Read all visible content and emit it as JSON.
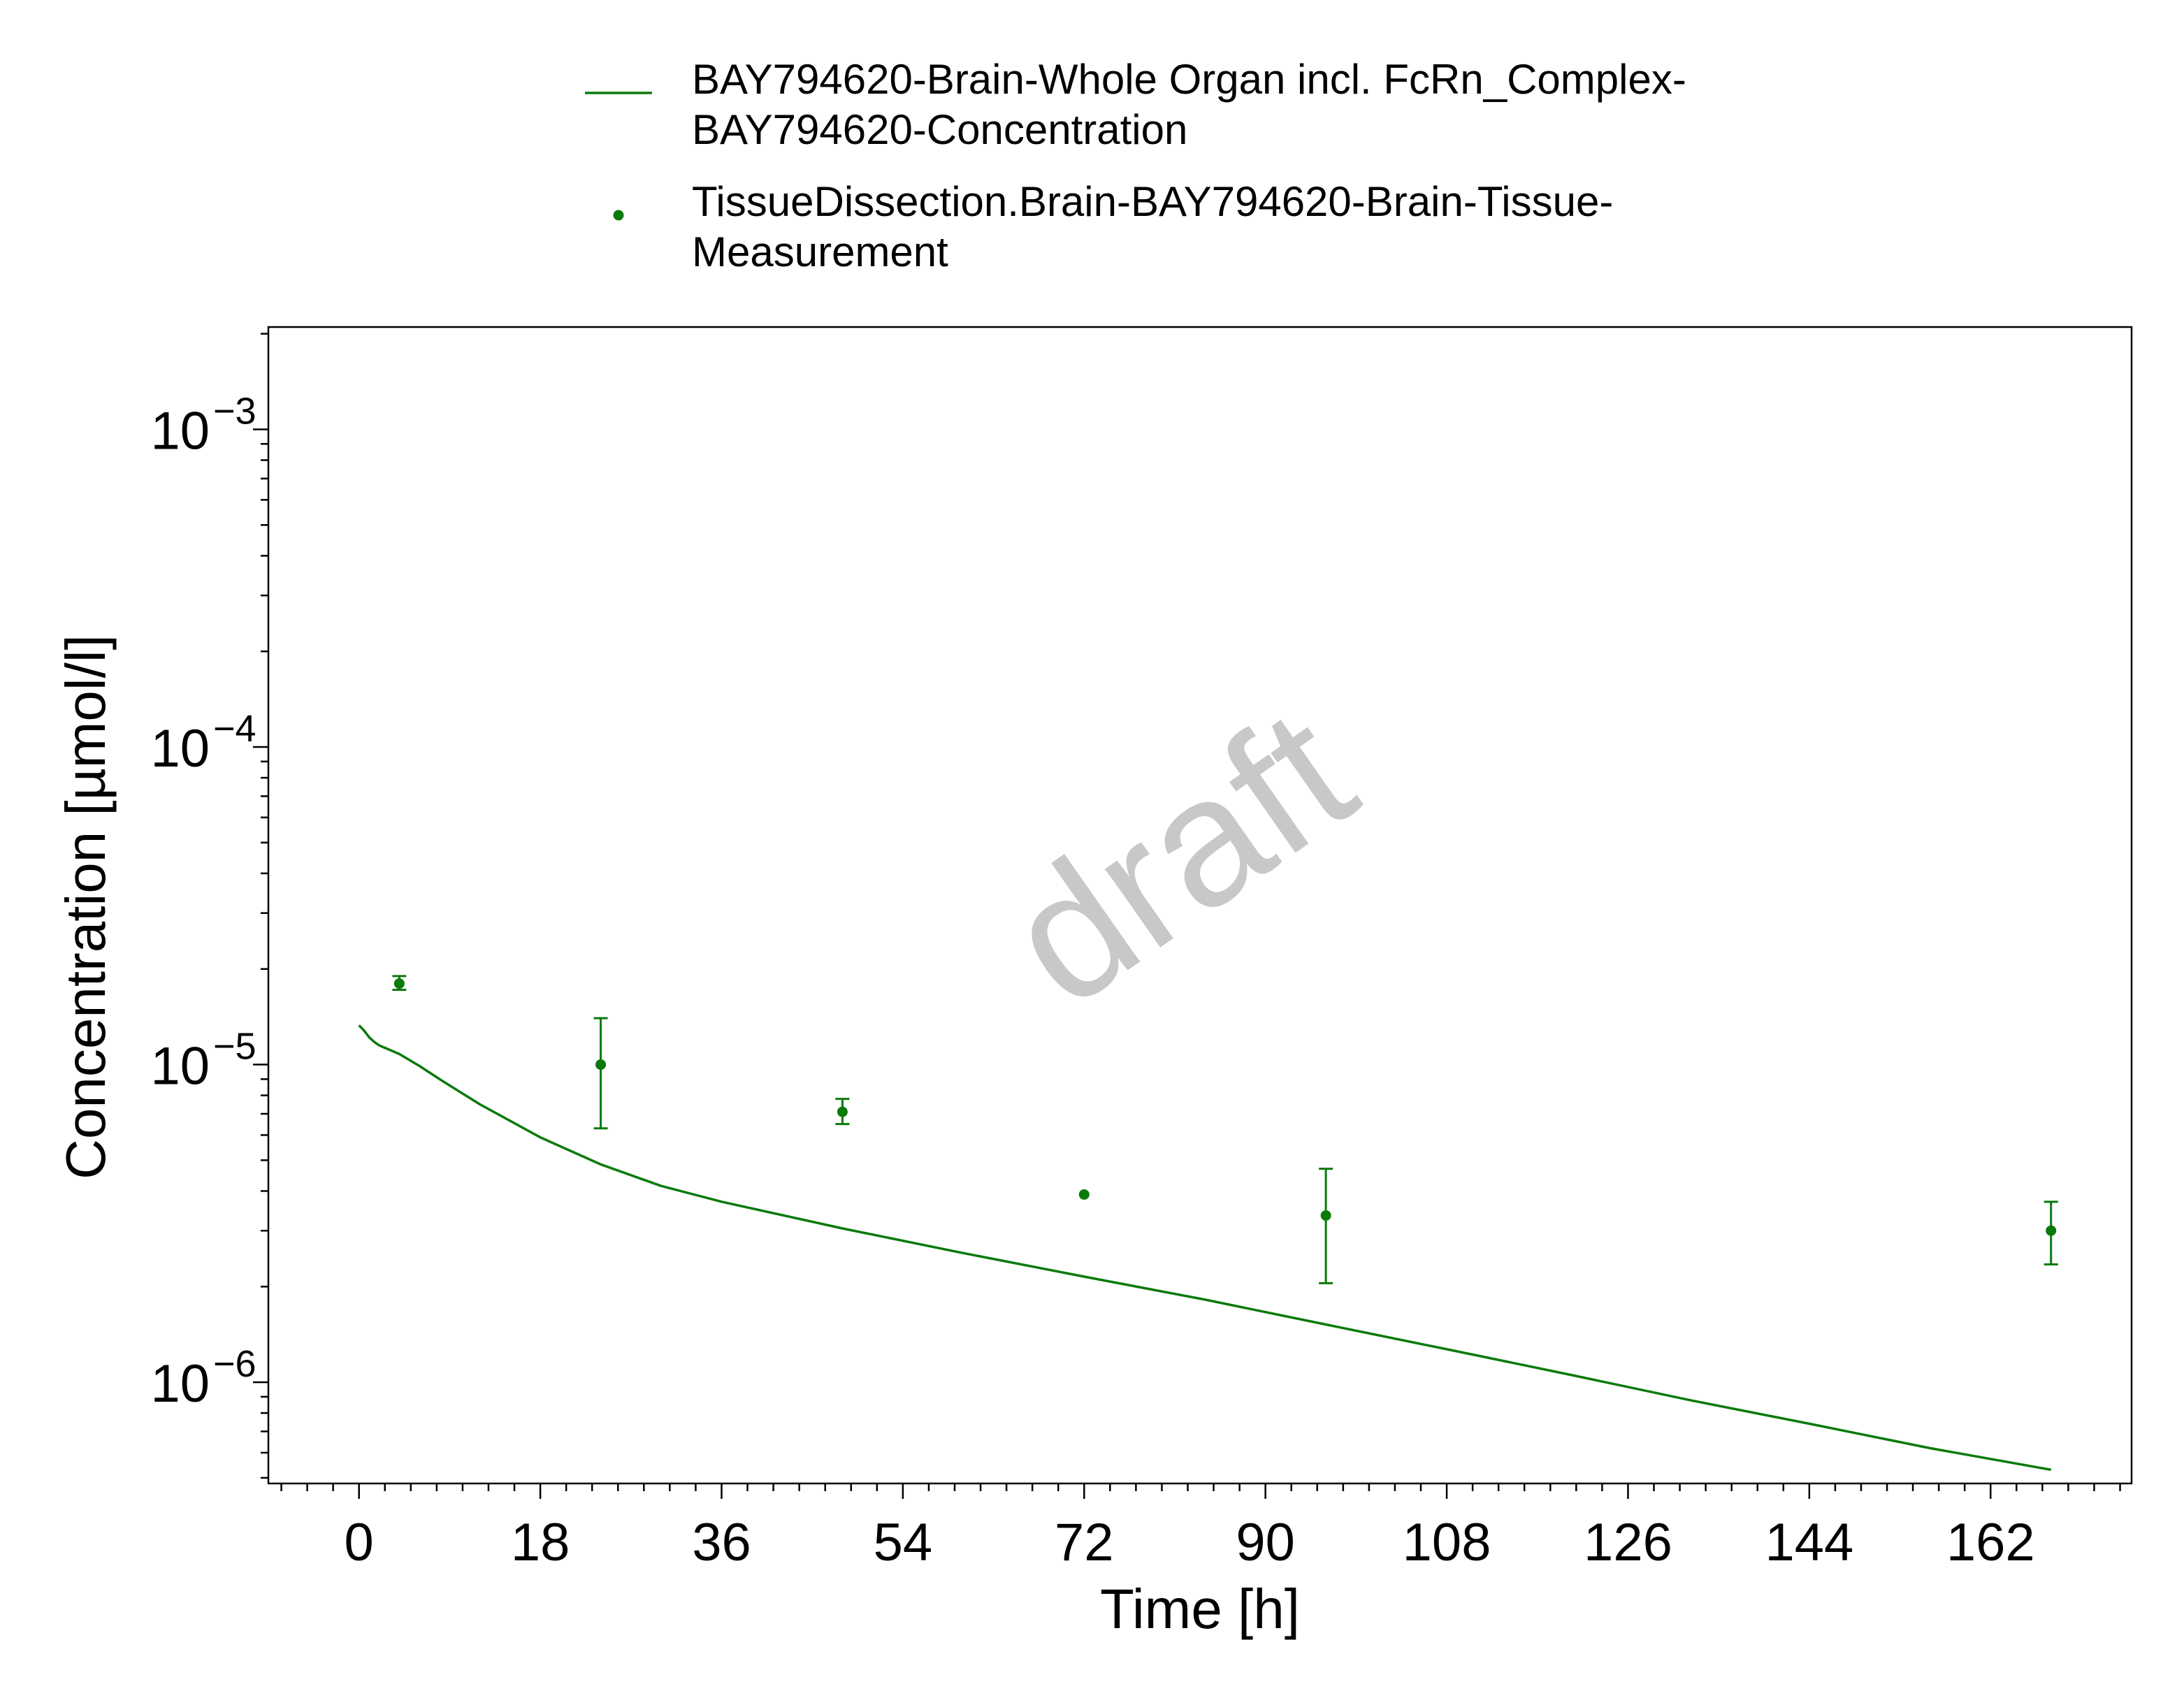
{
  "chart_data": {
    "type": "scatter",
    "xlabel": "Time [h]",
    "ylabel": "Concentration [µmol/l]",
    "x_scale": "linear",
    "y_scale": "log",
    "xlim": [
      -9,
      176
    ],
    "ylim": [
      4.8e-07,
      0.0021
    ],
    "x_ticks": [
      0,
      18,
      36,
      54,
      72,
      90,
      108,
      126,
      144,
      162
    ],
    "x_tick_labels": [
      "0",
      "18",
      "36",
      "54",
      "72",
      "90",
      "108",
      "126",
      "144",
      "162"
    ],
    "y_ticks": [
      1e-06,
      1e-05,
      0.0001,
      0.001
    ],
    "y_tick_labels": [
      {
        "base": "10",
        "exp": "−6"
      },
      {
        "base": "10",
        "exp": "−5"
      },
      {
        "base": "10",
        "exp": "−4"
      },
      {
        "base": "10",
        "exp": "−3"
      }
    ],
    "grid": false,
    "legend_position": "top",
    "watermark": "draft",
    "color": "#0a7a0a",
    "series": [
      {
        "name_lines": [
          "BAY794620-Brain-Whole Organ incl. FcRn_Complex-",
          "BAY794620-Concentration"
        ],
        "kind": "line",
        "x": [
          0,
          0.5,
          1,
          1.5,
          2,
          4,
          6,
          8,
          12,
          18,
          24,
          30,
          36,
          48,
          60,
          72,
          84,
          96,
          108,
          120,
          132,
          144,
          156,
          168
        ],
        "y": [
          1.33e-05,
          1.28e-05,
          1.22e-05,
          1.18e-05,
          1.15e-05,
          1.08e-05,
          9.9e-06,
          9e-06,
          7.5e-06,
          5.9e-06,
          4.85e-06,
          4.15e-06,
          3.7e-06,
          3.05e-06,
          2.55e-06,
          2.15e-06,
          1.82e-06,
          1.52e-06,
          1.27e-06,
          1.06e-06,
          8.8e-07,
          7.4e-07,
          6.2e-07,
          5.3e-07
        ]
      },
      {
        "name_lines": [
          "TissueDissection.Brain-BAY794620-Brain-Tissue-",
          "Measurement"
        ],
        "kind": "points",
        "x": [
          4,
          24,
          48,
          72,
          96,
          168
        ],
        "y": [
          1.8e-05,
          1e-05,
          7.1e-06,
          3.9e-06,
          3.35e-06,
          3e-06
        ],
        "y_err_low": [
          1.72e-05,
          6.3e-06,
          6.5e-06,
          null,
          2.05e-06,
          2.35e-06
        ],
        "y_err_high": [
          1.9e-05,
          1.4e-05,
          7.8e-06,
          null,
          4.7e-06,
          3.7e-06
        ]
      }
    ]
  }
}
